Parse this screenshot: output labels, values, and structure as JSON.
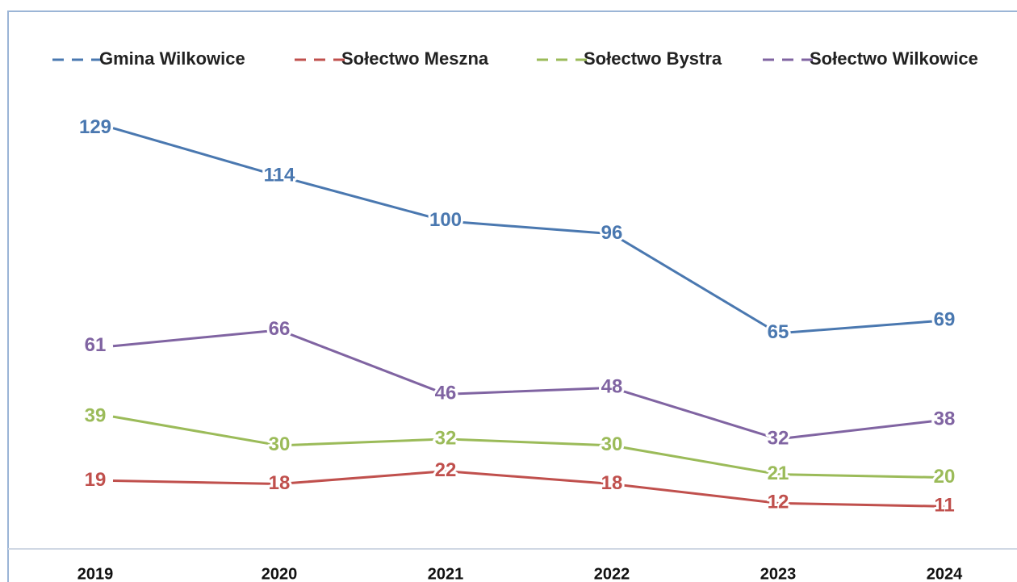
{
  "chart_data": {
    "type": "line",
    "categories": [
      "2019",
      "2020",
      "2021",
      "2022",
      "2023",
      "2024"
    ],
    "series": [
      {
        "name": "Gmina Wilkowice",
        "color": "#4a78b0",
        "values": [
          129,
          114,
          100,
          96,
          65,
          69
        ]
      },
      {
        "name": "Sołectwo Meszna",
        "color": "#c0504d",
        "values": [
          19,
          18,
          22,
          18,
          12,
          11
        ]
      },
      {
        "name": "Sołectwo Bystra",
        "color": "#9bbb59",
        "values": [
          39,
          30,
          32,
          30,
          21,
          20
        ]
      },
      {
        "name": "Sołectwo Wilkowice",
        "color": "#8064a2",
        "values": [
          61,
          66,
          46,
          48,
          32,
          38
        ]
      }
    ],
    "ylim": [
      0,
      140
    ],
    "legend": "top"
  }
}
